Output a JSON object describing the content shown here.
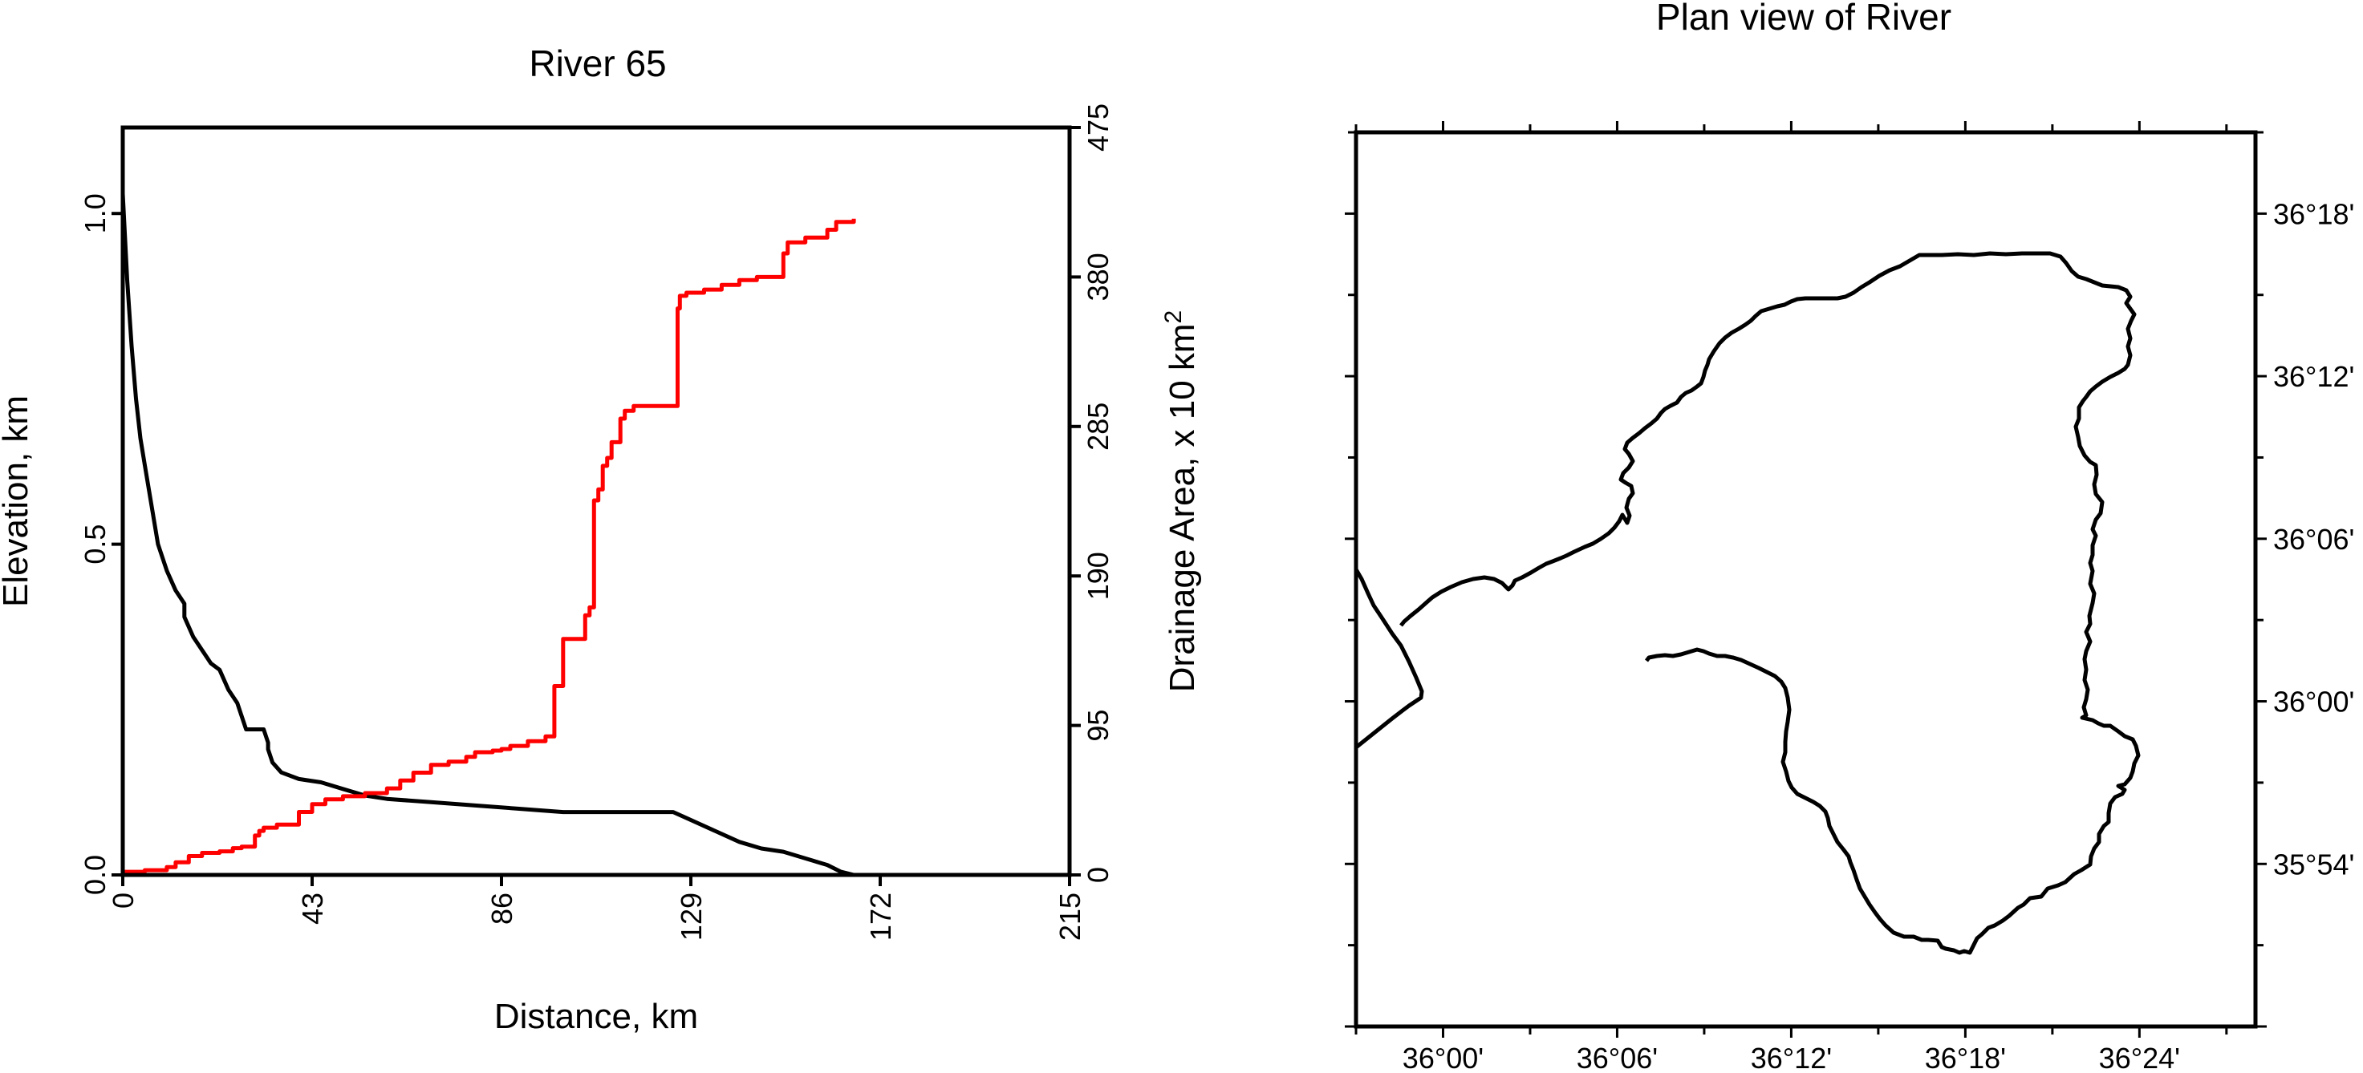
{
  "chart_data": [
    {
      "type": "line",
      "title": "River 65",
      "xlabel": "Distance, km",
      "ylabel": "Elevation, km",
      "y2label": "Drainage Area, x 10 km",
      "y2label_sup": "2",
      "xlim": [
        0,
        215
      ],
      "ylim": [
        0,
        1.13
      ],
      "y2lim": [
        0,
        475
      ],
      "xticks": [
        "0",
        "43",
        "86",
        "129",
        "172",
        "215"
      ],
      "yticks": [
        "0.0",
        "0.5",
        "1.0"
      ],
      "y2ticks": [
        "0",
        "95",
        "190",
        "285",
        "380",
        "475"
      ],
      "grid": false,
      "series": [
        {
          "axis": "left",
          "color": "#000000",
          "x": [
            0,
            1,
            2,
            3,
            4,
            5,
            6,
            7,
            8,
            10,
            12,
            14,
            14,
            16,
            18,
            20,
            22,
            24,
            26,
            27,
            28,
            30,
            32,
            33,
            33,
            34,
            36,
            40,
            45,
            50,
            55,
            60,
            70,
            80,
            90,
            100,
            110,
            120,
            125,
            130,
            135,
            140,
            145,
            150,
            155,
            160,
            163,
            166
          ],
          "y": [
            1.03,
            0.9,
            0.8,
            0.72,
            0.66,
            0.62,
            0.58,
            0.54,
            0.5,
            0.46,
            0.43,
            0.41,
            0.39,
            0.36,
            0.34,
            0.32,
            0.31,
            0.28,
            0.26,
            0.24,
            0.22,
            0.22,
            0.22,
            0.2,
            0.19,
            0.17,
            0.155,
            0.145,
            0.14,
            0.13,
            0.12,
            0.115,
            0.11,
            0.105,
            0.1,
            0.095,
            0.095,
            0.095,
            0.095,
            0.08,
            0.065,
            0.05,
            0.04,
            0.035,
            0.025,
            0.015,
            0.005,
            0.0
          ]
        },
        {
          "axis": "right",
          "color": "#ff0000",
          "step": true,
          "x": [
            0,
            5,
            10,
            12,
            15,
            18,
            22,
            25,
            27,
            30,
            31,
            32,
            35,
            40,
            43,
            46,
            50,
            55,
            60,
            63,
            66,
            70,
            74,
            78,
            80,
            84,
            86,
            88,
            92,
            96,
            98,
            100,
            105,
            106,
            107,
            108,
            109,
            110,
            111,
            112,
            113,
            114,
            116,
            126,
            126.5,
            128,
            132,
            136,
            140,
            144,
            150,
            151,
            155,
            160,
            162,
            166
          ],
          "y": [
            2,
            3,
            5,
            8,
            12,
            14,
            15,
            17,
            18,
            25,
            28,
            30,
            32,
            40,
            45,
            48,
            50,
            52,
            55,
            60,
            65,
            70,
            72,
            75,
            78,
            79,
            80,
            82,
            85,
            88,
            120,
            150,
            165,
            170,
            238,
            245,
            260,
            265,
            275,
            275,
            290,
            295,
            298,
            360,
            368,
            370,
            372,
            375,
            378,
            380,
            395,
            402,
            405,
            410,
            415,
            417
          ]
        }
      ]
    },
    {
      "type": "map",
      "title": "Plan view of River",
      "xlim": [
        "35°57'",
        "36°28'"
      ],
      "ylim": [
        "35°48'",
        "36°21'"
      ],
      "xticks": [
        "36°00'",
        "36°06'",
        "36°12'",
        "36°18'",
        "36°24'"
      ],
      "yticks": [
        "35°54'",
        "36°00'",
        "36°06'",
        "36°12'",
        "36°18'"
      ],
      "line_color": "#000000"
    }
  ]
}
